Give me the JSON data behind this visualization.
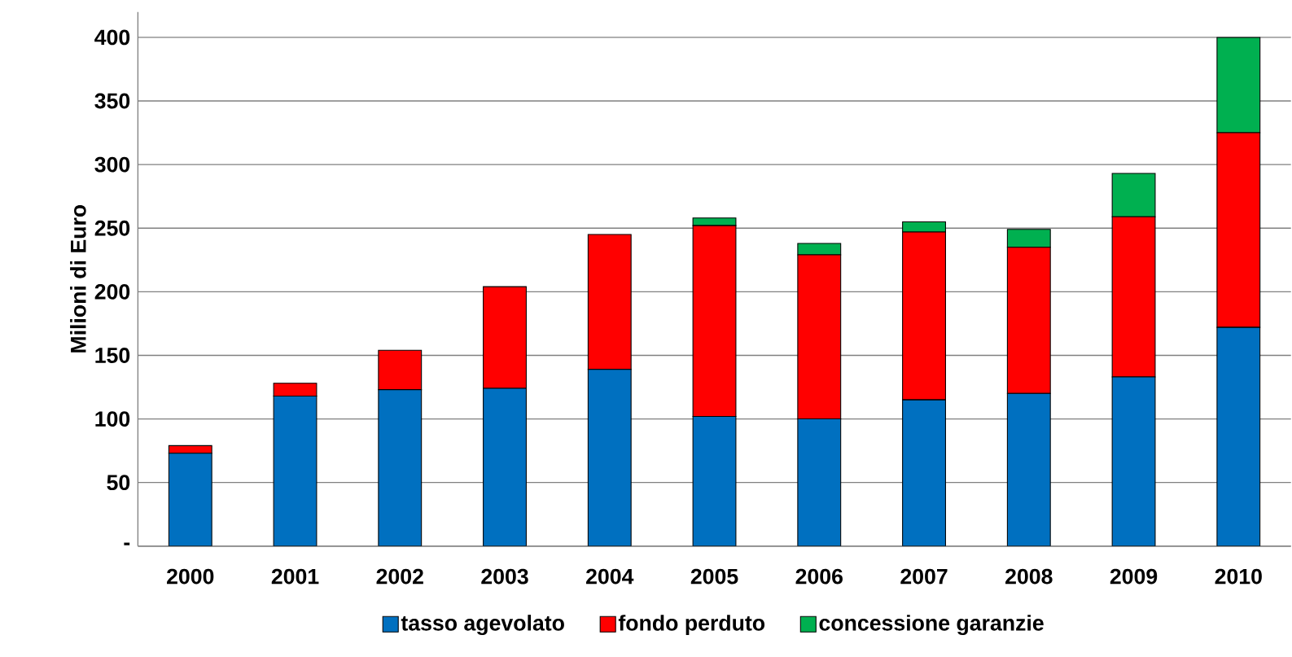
{
  "chart_data": {
    "type": "bar",
    "stacked": true,
    "ylabel": "Milioni di Euro",
    "categories": [
      "2000",
      "2001",
      "2002",
      "2003",
      "2004",
      "2005",
      "2006",
      "2007",
      "2008",
      "2009",
      "2010"
    ],
    "series": [
      {
        "name": "tasso agevolato",
        "color": "#0070c0",
        "values": [
          73,
          118,
          123,
          124,
          139,
          102,
          100,
          115,
          120,
          133,
          172
        ]
      },
      {
        "name": "fondo perduto",
        "color": "#ff0000",
        "values": [
          6,
          10,
          31,
          80,
          106,
          150,
          129,
          132,
          115,
          126,
          153
        ]
      },
      {
        "name": "concessione garanzie",
        "color": "#00b050",
        "values": [
          null,
          null,
          null,
          null,
          null,
          6,
          9,
          8,
          14,
          34,
          75
        ]
      }
    ],
    "ylim": [
      0,
      420
    ],
    "yticks": [
      {
        "value": 0,
        "label": "-"
      },
      50,
      100,
      150,
      200,
      250,
      300,
      350,
      400
    ],
    "grid": "y",
    "legend": "bottom"
  }
}
